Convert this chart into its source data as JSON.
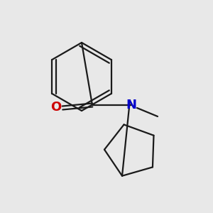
{
  "background_color": "#e8e8e8",
  "bond_color": "#1a1a1a",
  "o_color": "#cc0000",
  "n_color": "#0000cc",
  "line_width": 1.6,
  "fig_size": [
    3.0,
    3.0
  ],
  "dpi": 100
}
